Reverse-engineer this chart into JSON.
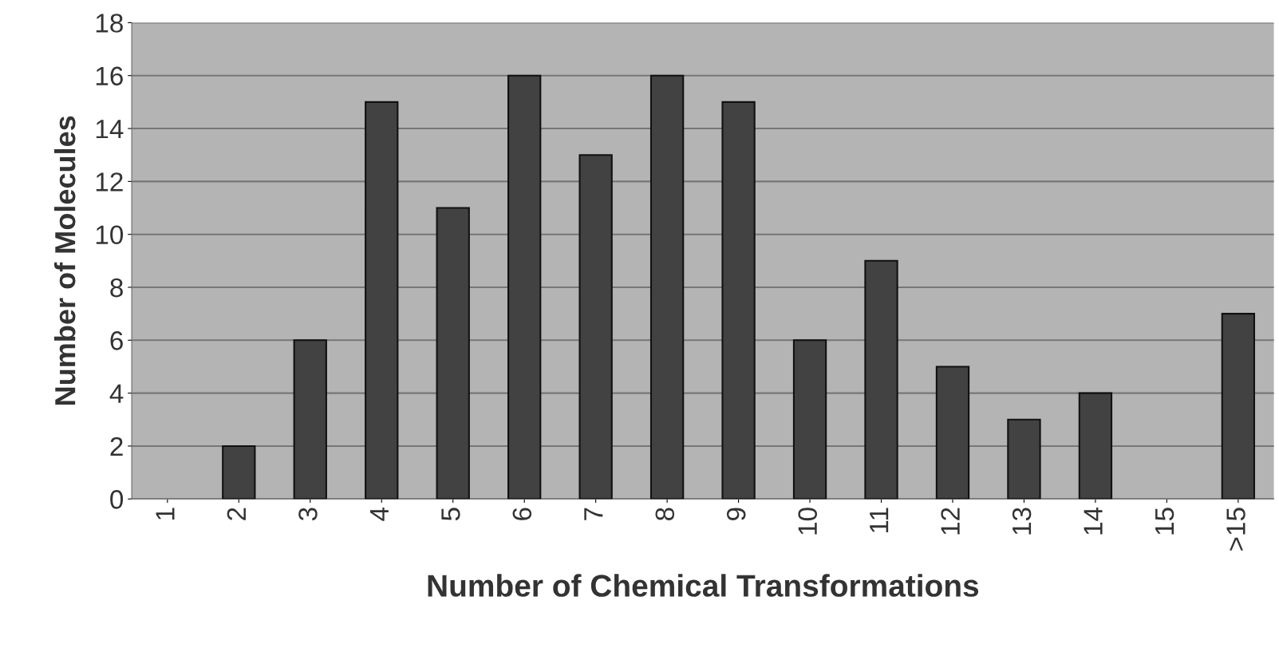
{
  "chart_data": {
    "type": "bar",
    "xlabel": "Number of Chemical Transformations",
    "ylabel": "Number of Molecules",
    "categories": [
      "1",
      "2",
      "3",
      "4",
      "5",
      "6",
      "7",
      "8",
      "9",
      "10",
      "11",
      "12",
      "13",
      "14",
      "15",
      ">15"
    ],
    "values": [
      0,
      2,
      6,
      15,
      11,
      16,
      13,
      16,
      15,
      6,
      9,
      5,
      3,
      4,
      0,
      7
    ],
    "color": "#424242",
    "ylim": [
      0,
      18
    ],
    "yticks": [
      0,
      2,
      4,
      6,
      8,
      10,
      12,
      14,
      16,
      18
    ],
    "grid": "y",
    "legend": false
  }
}
